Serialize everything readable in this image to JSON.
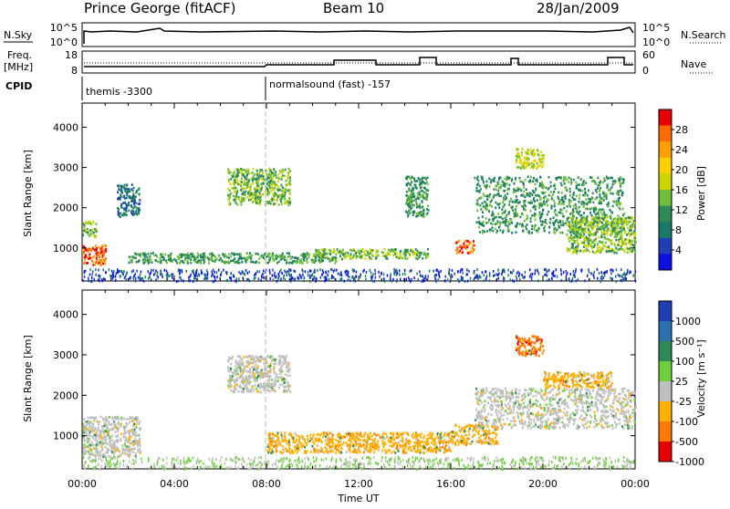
{
  "header": {
    "station": "Prince George (fitACF)",
    "beam": "Beam 10",
    "date": "28/Jan/2009"
  },
  "top_panels": {
    "nsky_label": "N.Sky",
    "nsearch_label": "N.Search",
    "nsearch_ticks": [
      "10^5",
      "10^0"
    ],
    "freq_label_1": "Freq.",
    "freq_label_2": "[MHz]",
    "freq_ticks": [
      "18",
      "8"
    ],
    "nave_label": "Nave",
    "nave_ticks": [
      "60",
      "0"
    ],
    "cpid_label": "CPID",
    "cpid_1": "themis -3300",
    "cpid_2": "normalsound (fast) -157"
  },
  "chart_data": [
    {
      "type": "heatmap",
      "title": "",
      "ylabel": "Slant Range [km]",
      "xlabel": "",
      "ylim": [
        180,
        4600
      ],
      "xlim": [
        0,
        24
      ],
      "yticks": [
        "1000",
        "2000",
        "3000",
        "4000"
      ],
      "xticks": [
        "00:00",
        "04:00",
        "08:00",
        "12:00",
        "16:00",
        "20:00",
        "00:00"
      ],
      "colorbar_label": "Power [dB]",
      "colorbar_ticks": [
        "28",
        "24",
        "20",
        "16",
        "12",
        "8",
        "4"
      ],
      "colors": [
        "#e60000",
        "#ff6a00",
        "#ff9f00",
        "#ffd000",
        "#ccd400",
        "#6fbf3a",
        "#2e8b57",
        "#1a7a6a",
        "#1f3fb5",
        "#0a10e0"
      ],
      "scatter_regions": [
        {
          "t": [
            0.0,
            1.0
          ],
          "r": [
            600,
            1100
          ],
          "power": 26
        },
        {
          "t": [
            0.0,
            0.6
          ],
          "r": [
            1300,
            1700
          ],
          "power": 14
        },
        {
          "t": [
            1.5,
            2.5
          ],
          "r": [
            1800,
            2600
          ],
          "power": 6
        },
        {
          "t": [
            6.3,
            9.0
          ],
          "r": [
            2100,
            3000
          ],
          "power": 12
        },
        {
          "t": [
            2.0,
            11.0
          ],
          "r": [
            650,
            900
          ],
          "power": 10
        },
        {
          "t": [
            10.0,
            15.0
          ],
          "r": [
            750,
            1000
          ],
          "power": 14
        },
        {
          "t": [
            14.0,
            15.0
          ],
          "r": [
            1800,
            2800
          ],
          "power": 10
        },
        {
          "t": [
            16.2,
            17.0
          ],
          "r": [
            900,
            1200
          ],
          "power": 24
        },
        {
          "t": [
            17.0,
            23.5
          ],
          "r": [
            1400,
            2800
          ],
          "power": 10
        },
        {
          "t": [
            18.8,
            20.0
          ],
          "r": [
            3000,
            3500
          ],
          "power": 16
        },
        {
          "t": [
            21.0,
            24.0
          ],
          "r": [
            900,
            1800
          ],
          "power": 14
        }
      ]
    },
    {
      "type": "heatmap",
      "title": "",
      "ylabel": "Slant Range [km]",
      "xlabel": "Time UT",
      "ylim": [
        180,
        4600
      ],
      "xlim": [
        0,
        24
      ],
      "yticks": [
        "1000",
        "2000",
        "3000",
        "4000"
      ],
      "xticks": [
        "00:00",
        "04:00",
        "08:00",
        "12:00",
        "16:00",
        "20:00",
        "00:00"
      ],
      "colorbar_label": "Velocity [m s⁻¹]",
      "colorbar_ticks": [
        "1000",
        "500",
        "100",
        "25",
        "-25",
        "-100",
        "-500",
        "-1000"
      ],
      "colors": [
        "#1f3fb5",
        "#2e6fb0",
        "#2e8b57",
        "#6fcf3a",
        "#bfbfbf",
        "#ffb000",
        "#ff7a00",
        "#e60000"
      ],
      "scatter_regions": [
        {
          "t": [
            0.0,
            2.5
          ],
          "r": [
            500,
            1500
          ],
          "velocity": 0
        },
        {
          "t": [
            6.3,
            9.0
          ],
          "r": [
            2100,
            3000
          ],
          "velocity": 0
        },
        {
          "t": [
            8.0,
            16.0
          ],
          "r": [
            600,
            1100
          ],
          "velocity": -150
        },
        {
          "t": [
            16.0,
            18.0
          ],
          "r": [
            800,
            1300
          ],
          "velocity": -150
        },
        {
          "t": [
            17.0,
            24.0
          ],
          "r": [
            1200,
            2200
          ],
          "velocity": 0
        },
        {
          "t": [
            18.8,
            20.0
          ],
          "r": [
            3000,
            3500
          ],
          "velocity": -300
        },
        {
          "t": [
            20.0,
            23.0
          ],
          "r": [
            2200,
            2600
          ],
          "velocity": -200
        }
      ]
    }
  ]
}
